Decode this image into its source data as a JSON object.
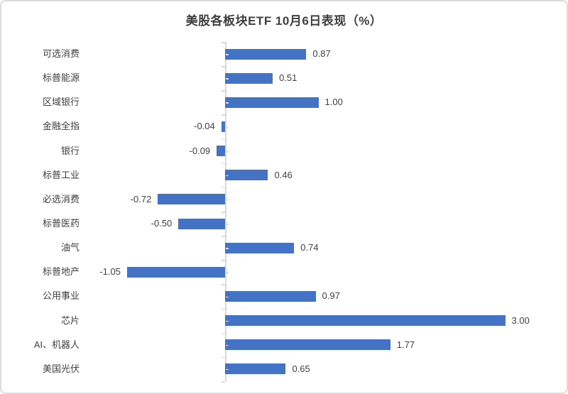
{
  "chart_data": {
    "type": "bar",
    "orientation": "horizontal",
    "title": "美股各板块ETF 10月6日表现（%）",
    "categories": [
      "可选消费",
      "标普能源",
      "区域银行",
      "金融全指",
      "银行",
      "标普工业",
      "必选消费",
      "标普医药",
      "油气",
      "标普地产",
      "公用事业",
      "芯片",
      "AI、机器人",
      "美国光伏"
    ],
    "values": [
      0.87,
      0.51,
      1.0,
      -0.04,
      -0.09,
      0.46,
      -0.72,
      -0.5,
      0.74,
      -1.05,
      0.97,
      3.0,
      1.77,
      0.65
    ],
    "value_labels": [
      "0.87",
      "0.51",
      "1.00",
      "-0.04",
      "-0.09",
      "0.46",
      "-0.72",
      "-0.50",
      "0.74",
      "-1.05",
      "0.97",
      "3.00",
      "1.77",
      "0.65"
    ],
    "xlim": [
      -1.6,
      3.7
    ],
    "grid": false,
    "legend": false,
    "data_labels": true,
    "bar_color": "#4472c4",
    "axis_color": "#d9d9d9",
    "text_color": "#404040",
    "title_color": "#3f3f3f"
  }
}
